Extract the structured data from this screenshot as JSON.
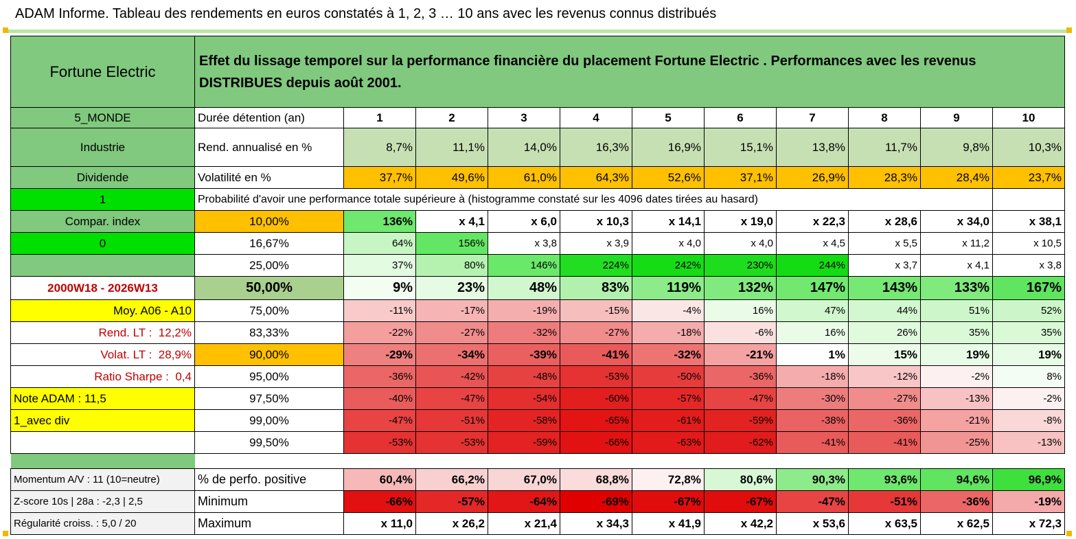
{
  "page_title": "ADAM Informe. Tableau des rendements en euros constatés à 1, 2, 3 … 10 ans avec les revenus connus distribués",
  "fund_name": "Fortune Electric",
  "description": "Effet du lissage temporel sur la performance financière du placement Fortune Electric . Performances avec les revenus DISTRIBUES depuis août 2001.",
  "sidebar": {
    "region": "5_MONDE",
    "sector": "Industrie",
    "dividend": "Dividende",
    "flag1": "1",
    "compare_index": "Compar. index",
    "flag0": "0",
    "blank": "",
    "period": "2000W18 - 2026W13",
    "moy": "Moy. A06 - A10",
    "rend_lt_label": "Rend. LT :",
    "rend_lt_value": "12,2%",
    "volat_lt_label": "Volat. LT :",
    "volat_lt_value": "28,9%",
    "sharpe_label": "Ratio Sharpe :",
    "sharpe_value": "0,4",
    "note": "Note ADAM : 11,5",
    "avec_div": "1_avec div"
  },
  "header": {
    "duration_label": "Durée détention (an)",
    "years": [
      "1",
      "2",
      "3",
      "4",
      "5",
      "6",
      "7",
      "8",
      "9",
      "10"
    ]
  },
  "rend": {
    "label": "Rend. annualisé en %",
    "values": [
      "8,7%",
      "11,1%",
      "14,0%",
      "16,3%",
      "16,9%",
      "15,1%",
      "13,8%",
      "11,7%",
      "9,8%",
      "10,3%"
    ]
  },
  "volat": {
    "label": "Volatilité en %",
    "values": [
      "37,7%",
      "49,6%",
      "61,0%",
      "64,3%",
      "52,6%",
      "37,1%",
      "26,9%",
      "28,3%",
      "28,4%",
      "23,7%"
    ]
  },
  "proba_title": "Probabilité d'avoir une performance totale supérieure à (histogramme constaté sur les 4096 dates tirées au hasard)",
  "quantiles": [
    {
      "label": "10,00%",
      "values": [
        "136%",
        "x 4,1",
        "x 6,0",
        "x 10,3",
        "x 14,1",
        "x 19,0",
        "x 22,3",
        "x 28,6",
        "x 34,0",
        "x 38,1"
      ],
      "colors": [
        "#6ee86e",
        "#ffffff",
        "#ffffff",
        "#ffffff",
        "#ffffff",
        "#ffffff",
        "#ffffff",
        "#ffffff",
        "#ffffff",
        "#ffffff"
      ]
    },
    {
      "label": "16,67%",
      "values": [
        "64%",
        "156%",
        "x 3,8",
        "x 3,9",
        "x 4,0",
        "x 4,0",
        "x 4,5",
        "x 5,5",
        "x 11,2",
        "x 10,5"
      ],
      "colors": [
        "#c7f5c4",
        "#63e663",
        "#ffffff",
        "#ffffff",
        "#ffffff",
        "#ffffff",
        "#ffffff",
        "#ffffff",
        "#ffffff",
        "#ffffff"
      ]
    },
    {
      "label": "25,00%",
      "values": [
        "37%",
        "80%",
        "146%",
        "224%",
        "242%",
        "230%",
        "244%",
        "x 3,7",
        "x 4,1",
        "x 3,8"
      ],
      "colors": [
        "#e3fbe1",
        "#b4f2b0",
        "#6ae86a",
        "#22de22",
        "#16dc16",
        "#1edd1e",
        "#14dc14",
        "#ffffff",
        "#ffffff",
        "#ffffff"
      ]
    },
    {
      "label": "50,00%",
      "values": [
        "9%",
        "23%",
        "48%",
        "83%",
        "119%",
        "132%",
        "147%",
        "143%",
        "133%",
        "167%"
      ],
      "colors": [
        "#f3fdf2",
        "#e5fbe3",
        "#d1f7ce",
        "#b1f1ad",
        "#8deb8a",
        "#81ea7e",
        "#72e870",
        "#76e874",
        "#80ea7d",
        "#5fe55f"
      ]
    },
    {
      "label": "75,00%",
      "values": [
        "-11%",
        "-17%",
        "-19%",
        "-15%",
        "-4%",
        "16%",
        "47%",
        "44%",
        "51%",
        "52%"
      ],
      "colors": [
        "#f8caca",
        "#f6b4b4",
        "#f5aeae",
        "#f7bebe",
        "#fbe6e6",
        "#eafbe8",
        "#d0f7cd",
        "#d3f7d0",
        "#cdf6ca",
        "#ccf6c9"
      ]
    },
    {
      "label": "83,33%",
      "values": [
        "-22%",
        "-27%",
        "-32%",
        "-27%",
        "-18%",
        "-6%",
        "16%",
        "26%",
        "35%",
        "35%"
      ],
      "colors": [
        "#f49e9e",
        "#f08c8c",
        "#ee7c7c",
        "#f08c8c",
        "#f5acac",
        "#fbe0e0",
        "#eafbe8",
        "#e0fade",
        "#daf9d7",
        "#daf9d7"
      ]
    },
    {
      "label": "90,00%",
      "values": [
        "-29%",
        "-34%",
        "-39%",
        "-41%",
        "-32%",
        "-21%",
        "1%",
        "15%",
        "19%",
        "19%"
      ],
      "colors": [
        "#ee8080",
        "#ec7070",
        "#ea6060",
        "#e95a5a",
        "#ee7474",
        "#f4a2a2",
        "#ffffff",
        "#ecfbea",
        "#e8fbe6",
        "#e8fbe6"
      ]
    },
    {
      "label": "95,00%",
      "values": [
        "-36%",
        "-42%",
        "-48%",
        "-53%",
        "-50%",
        "-36%",
        "-18%",
        "-12%",
        "-2%",
        "8%"
      ],
      "colors": [
        "#eb6666",
        "#e95454",
        "#e74242",
        "#e53232",
        "#e63c3c",
        "#eb6666",
        "#f5acac",
        "#f8c6c6",
        "#fdf0f0",
        "#f4fdf3"
      ]
    },
    {
      "label": "97,50%",
      "values": [
        "-40%",
        "-47%",
        "-54%",
        "-60%",
        "-57%",
        "-47%",
        "-30%",
        "-27%",
        "-13%",
        "-2%"
      ],
      "colors": [
        "#ea5c5c",
        "#e84444",
        "#e52e2e",
        "#e31e1e",
        "#e42828",
        "#e84444",
        "#ed7c7c",
        "#f08c8c",
        "#f8c2c2",
        "#fdf0f0"
      ]
    },
    {
      "label": "99,00%",
      "values": [
        "-47%",
        "-51%",
        "-58%",
        "-65%",
        "-61%",
        "-59%",
        "-38%",
        "-36%",
        "-21%",
        "-8%"
      ],
      "colors": [
        "#e84444",
        "#e63838",
        "#e42424",
        "#e21414",
        "#e31c1c",
        "#e32222",
        "#ea6262",
        "#eb6666",
        "#f4a2a2",
        "#fad8d8"
      ]
    },
    {
      "label": "99,50%",
      "values": [
        "-53%",
        "-53%",
        "-59%",
        "-66%",
        "-63%",
        "-62%",
        "-41%",
        "-41%",
        "-25%",
        "-13%"
      ],
      "colors": [
        "#e53232",
        "#e53232",
        "#e32222",
        "#e21212",
        "#e21a1a",
        "#e21c1c",
        "#e95a5a",
        "#e95a5a",
        "#f19494",
        "#f8c2c2"
      ]
    }
  ],
  "bottom": {
    "momentum": "Momentum A/V : 11 (10=neutre)",
    "zscore": "Z-score 10s | 28a : -2,3 | 2,5",
    "regularite": "Régularité croiss. : 5,0 / 20",
    "positive_label": "% de perfo. positive",
    "positive": [
      "60,4%",
      "66,2%",
      "67,0%",
      "68,8%",
      "72,8%",
      "80,6%",
      "90,3%",
      "93,6%",
      "94,6%",
      "96,9%"
    ],
    "positive_colors": [
      "#f6b8b8",
      "#f9d0d0",
      "#f9d6d6",
      "#fadcdc",
      "#fdf0f0",
      "#d8f8d5",
      "#8eeb8b",
      "#6ee86e",
      "#5fe55f",
      "#3ee03e"
    ],
    "min_label": "Minimum",
    "min": [
      "-66%",
      "-57%",
      "-64%",
      "-69%",
      "-67%",
      "-67%",
      "-47%",
      "-51%",
      "-36%",
      "-19%"
    ],
    "min_colors": [
      "#e21010",
      "#e42828",
      "#e21616",
      "#e00000",
      "#e10c0c",
      "#e10c0c",
      "#e84444",
      "#e63838",
      "#eb6666",
      "#f4aaaa"
    ],
    "max_label": "Maximum",
    "max": [
      "x 11,0",
      "x 26,2",
      "x 21,4",
      "x 34,3",
      "x 41,9",
      "x 42,2",
      "x 53,6",
      "x 63,5",
      "x 62,5",
      "x 72,3"
    ]
  },
  "colors": {
    "header_green": "#80c97e",
    "light_green": "#c6e0b4",
    "orange": "#ffc000",
    "bright_green": "#00e000",
    "yellow": "#ffff00",
    "dark_red_text": "#c00000"
  }
}
